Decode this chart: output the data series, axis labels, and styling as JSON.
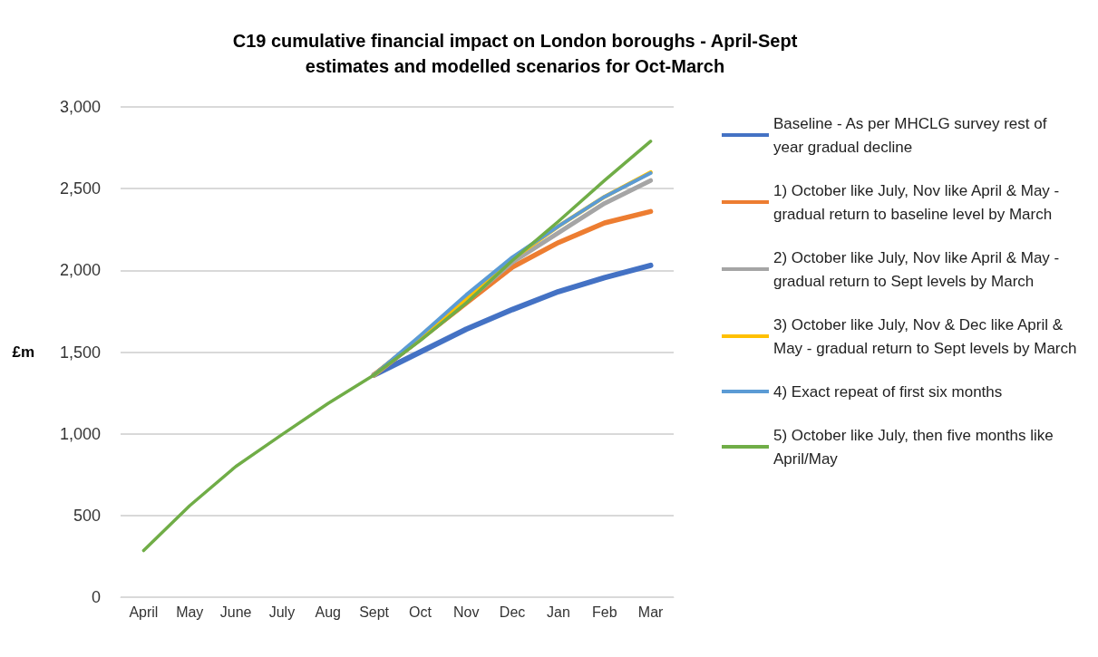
{
  "chart_data": {
    "type": "line",
    "title": "C19 cumulative financial impact on London boroughs - April-Sept\nestimates and modelled scenarios for Oct-March",
    "ylabel": "£m",
    "categories": [
      "April",
      "May",
      "June",
      "July",
      "Aug",
      "Sept",
      "Oct",
      "Nov",
      "Dec",
      "Jan",
      "Feb",
      "Mar"
    ],
    "series": [
      {
        "name": "Baseline - As per MHCLG survey rest of year gradual decline",
        "color": "#4472c4",
        "values": [
          null,
          null,
          null,
          null,
          null,
          1360,
          1500,
          1640,
          1760,
          1870,
          1955,
          2030
        ]
      },
      {
        "name": "1) October like July, Nov like April & May - gradual return to baseline level by March",
        "color": "#ed7d31",
        "values": [
          null,
          null,
          null,
          null,
          null,
          1360,
          1580,
          1800,
          2020,
          2170,
          2290,
          2360
        ]
      },
      {
        "name": "2) October like July, Nov like April & May - gradual return to Sept levels by March",
        "color": "#a5a5a5",
        "values": [
          null,
          null,
          null,
          null,
          null,
          1360,
          1580,
          1810,
          2050,
          2230,
          2410,
          2550
        ]
      },
      {
        "name": "3) October like July, Nov & Dec like April & May - gradual return to Sept levels by March",
        "color": "#ffc000",
        "values": [
          null,
          null,
          null,
          null,
          null,
          1360,
          1590,
          1830,
          2070,
          2270,
          2450,
          2600
        ]
      },
      {
        "name": "4) Exact repeat of first six months",
        "color": "#5b9bd5",
        "values": [
          null,
          null,
          null,
          null,
          null,
          1360,
          1600,
          1850,
          2080,
          2270,
          2450,
          2595
        ]
      },
      {
        "name": "5) October like July, then five months like April/May",
        "color": "#70ad47",
        "values": [
          285,
          560,
          800,
          995,
          1185,
          1360,
          1570,
          1800,
          2060,
          2300,
          2550,
          2790
        ]
      }
    ],
    "ylim": [
      0,
      3000
    ],
    "yticks": [
      0,
      500,
      {
        "value": 1000,
        "label": "1,000"
      },
      {
        "value": 1500,
        "label": "1,500"
      },
      {
        "value": 2000,
        "label": "2,000"
      },
      {
        "value": 2500,
        "label": "2,500"
      },
      {
        "value": 3000,
        "label": "3,000"
      }
    ],
    "grid": "y",
    "legend": "right",
    "marker": "none",
    "line_style": "solid"
  }
}
